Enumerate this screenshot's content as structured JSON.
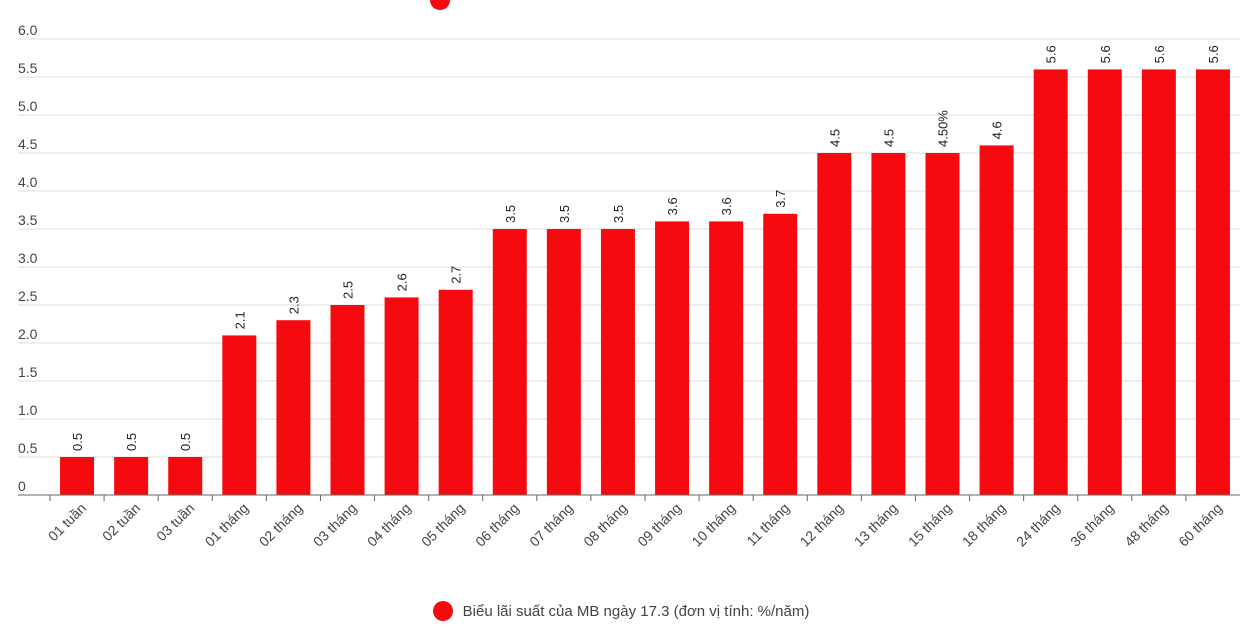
{
  "chart_data": {
    "type": "bar",
    "categories": [
      "01 tuần",
      "02 tuần",
      "03 tuần",
      "01 tháng",
      "02 tháng",
      "03 tháng",
      "04 tháng",
      "05 tháng",
      "06 tháng",
      "07 tháng",
      "08 tháng",
      "09 tháng",
      "10 tháng",
      "11 tháng",
      "12 tháng",
      "13 tháng",
      "15 tháng",
      "18 tháng",
      "24 tháng",
      "36 tháng",
      "48 tháng",
      "60 tháng"
    ],
    "values": [
      0.5,
      0.5,
      0.5,
      2.1,
      2.3,
      2.5,
      2.6,
      2.7,
      3.5,
      3.5,
      3.5,
      3.6,
      3.6,
      3.7,
      4.5,
      4.5,
      4.5,
      4.6,
      5.6,
      5.6,
      5.6,
      5.6
    ],
    "data_labels": [
      "0.5",
      "0.5",
      "0.5",
      "2.1",
      "2.3",
      "2.5",
      "2.6",
      "2.7",
      "3.5",
      "3.5",
      "3.5",
      "3.6",
      "3.6",
      "3.7",
      "4.5",
      "4.5",
      "4.50%",
      "4.6",
      "5.6",
      "5.6",
      "5.6",
      "5.6"
    ],
    "yticks": [
      "0",
      "0.5",
      "1.0",
      "1.5",
      "2.0",
      "2.5",
      "3.0",
      "3.5",
      "4.0",
      "4.5",
      "5.0",
      "5.5",
      "6.0"
    ],
    "ylim": [
      0,
      6
    ],
    "grid": true,
    "legend_position": "bottom-center",
    "series": [
      {
        "name": "Biểu lãi suất của MB ngày 17.3 (đơn vị tính: %/năm)",
        "color": "#f50b0f"
      }
    ]
  }
}
